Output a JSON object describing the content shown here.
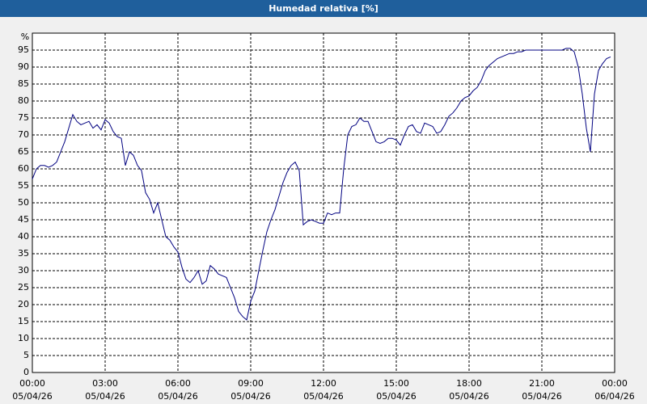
{
  "chart_data": {
    "type": "line",
    "title": "Humedad relativa [%]",
    "y_label": "%",
    "x": [
      0,
      10,
      20,
      30,
      40,
      50,
      60,
      70,
      80,
      90,
      100,
      110,
      120,
      130,
      140,
      150,
      160,
      170,
      180,
      190,
      200,
      210,
      220,
      230,
      240,
      250,
      260,
      270,
      280,
      290,
      300,
      310,
      320,
      330,
      340,
      350,
      360,
      370,
      380,
      390,
      400,
      410,
      420,
      430,
      440,
      450,
      460,
      470,
      480,
      490,
      500,
      510,
      520,
      530,
      540,
      550,
      560,
      570,
      580,
      590,
      600,
      610,
      620,
      630,
      640,
      650,
      660,
      670,
      680,
      690,
      700,
      710,
      720,
      730,
      740,
      750,
      760,
      770,
      780,
      790,
      800,
      810,
      820,
      830,
      840,
      850,
      860,
      870,
      880,
      890,
      900,
      910,
      920,
      930,
      940,
      950,
      960,
      970,
      980,
      990,
      1000,
      1010,
      1020,
      1030,
      1040,
      1050,
      1060,
      1070,
      1080,
      1090,
      1100,
      1110,
      1120,
      1130,
      1140,
      1150,
      1160,
      1170,
      1180,
      1190,
      1200,
      1210,
      1220,
      1230,
      1240,
      1250,
      1260,
      1270,
      1280,
      1290,
      1300,
      1310,
      1320,
      1330,
      1340,
      1350,
      1360,
      1370,
      1380,
      1390,
      1400,
      1410,
      1420,
      1430
    ],
    "series": [
      {
        "name": "Humedad relativa",
        "color": "#000080",
        "values": [
          57,
          60,
          61,
          61,
          60.5,
          61,
          62,
          65,
          68,
          72,
          76,
          74,
          73,
          73.5,
          74,
          72,
          73,
          71.5,
          74.5,
          73.5,
          71,
          69.5,
          69,
          61,
          65,
          64,
          61,
          59.5,
          53,
          51,
          47,
          50,
          45,
          40,
          39,
          37,
          35.5,
          31,
          27.5,
          26.5,
          28,
          30,
          26,
          27,
          31.5,
          30.5,
          29,
          28.5,
          28,
          25,
          22,
          18,
          16.5,
          15.5,
          21,
          24,
          30,
          36,
          41.5,
          45,
          48,
          52,
          56,
          59,
          61,
          62,
          59.5,
          43.5,
          44.5,
          45,
          44.5,
          44,
          44,
          47,
          46.5,
          47,
          47,
          60,
          70,
          72.5,
          73,
          75,
          74,
          74,
          71,
          68,
          67.5,
          68,
          69,
          69,
          68.5,
          67,
          70,
          72.5,
          73,
          71,
          70.5,
          73.5,
          73,
          72.5,
          70.5,
          71,
          73,
          75.5,
          76.5,
          78,
          80,
          81,
          81.5,
          83,
          84,
          86,
          89,
          90.5,
          91.5,
          92.5,
          93,
          93.5,
          94,
          94,
          94.5,
          94.5,
          95,
          95,
          95,
          95,
          95,
          95,
          95,
          95,
          95,
          95,
          95.5,
          95.5,
          94.5,
          90,
          82,
          72,
          65,
          82,
          89,
          91,
          92.5,
          93
        ]
      }
    ],
    "xlim": [
      0,
      1440
    ],
    "xticks": [
      {
        "value": 0,
        "label": "00:00"
      },
      {
        "value": 180,
        "label": "03:00"
      },
      {
        "value": 360,
        "label": "06:00"
      },
      {
        "value": 540,
        "label": "09:00"
      },
      {
        "value": 720,
        "label": "12:00"
      },
      {
        "value": 900,
        "label": "15:00"
      },
      {
        "value": 1080,
        "label": "18:00"
      },
      {
        "value": 1260,
        "label": "21:00"
      },
      {
        "value": 1440,
        "label": "00:00"
      }
    ],
    "xtick_dates": [
      "05/04/26",
      "05/04/26",
      "05/04/26",
      "05/04/26",
      "05/04/26",
      "05/04/26",
      "05/04/26",
      "05/04/26",
      "06/04/26"
    ],
    "ylim": [
      0,
      100
    ],
    "yticks": [
      0,
      5,
      10,
      15,
      20,
      25,
      30,
      35,
      40,
      45,
      50,
      55,
      60,
      65,
      70,
      75,
      80,
      85,
      90,
      95
    ],
    "grid": true
  }
}
